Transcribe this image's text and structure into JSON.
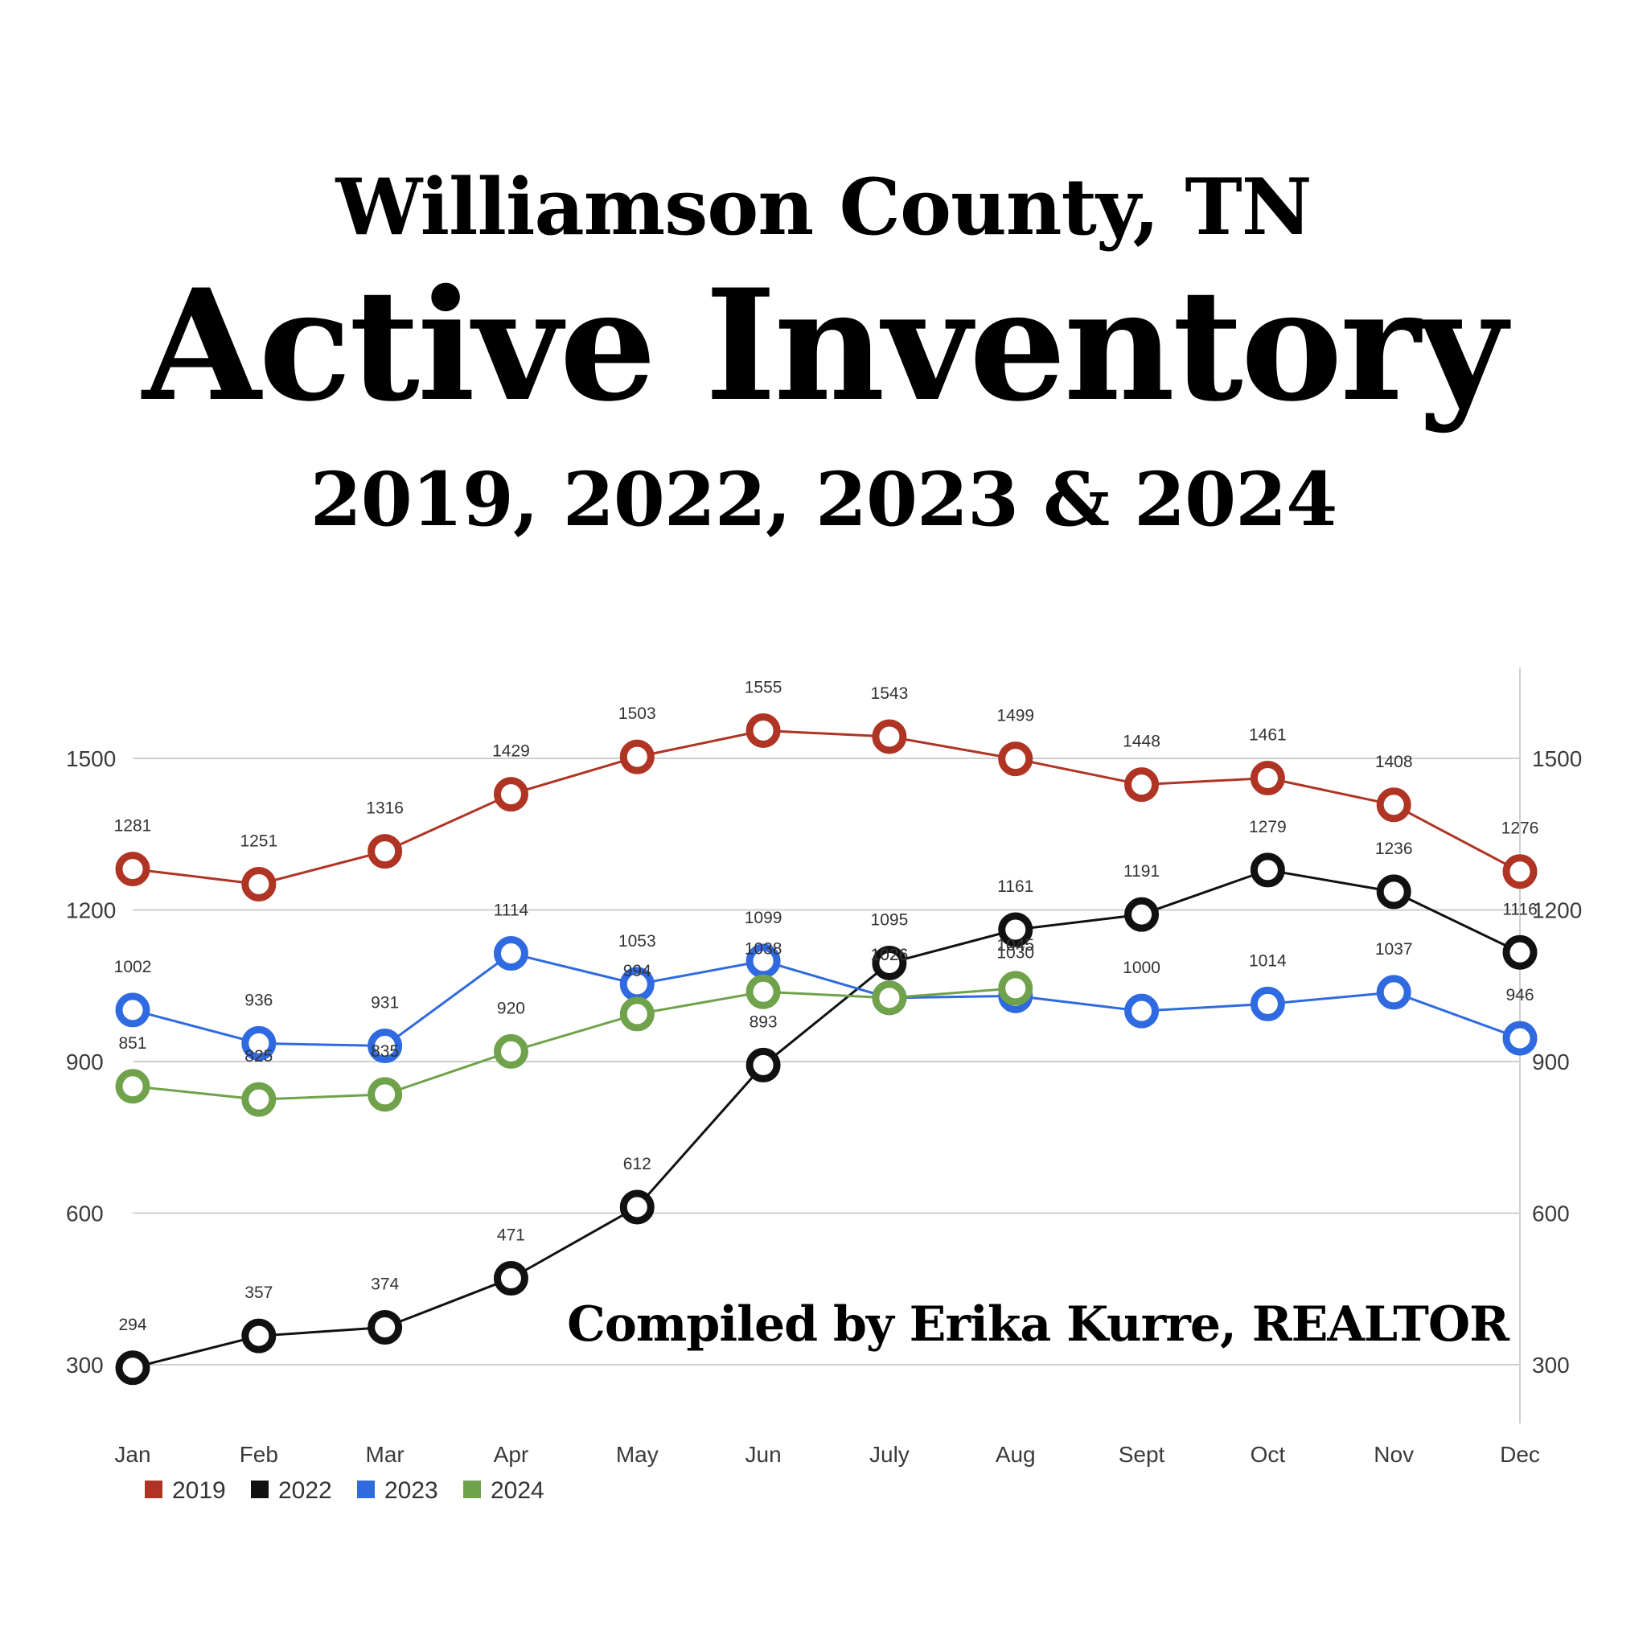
{
  "header": {
    "line1": "Williamson County, TN",
    "line2": "Active Inventory",
    "line3": "2019, 2022, 2023 & 2024"
  },
  "credit": "Compiled by Erika Kurre, REALTOR",
  "chart_data": {
    "type": "line",
    "title": "Active Inventory",
    "xlabel": "",
    "ylabel": "",
    "categories": [
      "Jan",
      "Feb",
      "Mar",
      "Apr",
      "May",
      "Jun",
      "July",
      "Aug",
      "Sept",
      "Oct",
      "Nov",
      "Dec"
    ],
    "yticks": [
      300,
      600,
      900,
      1200,
      1500
    ],
    "ylim": [
      200,
      1700
    ],
    "grid": true,
    "legend_position": "bottom-left",
    "series": [
      {
        "name": "2019",
        "color": "#b03424",
        "values": [
          1281,
          1251,
          1316,
          1429,
          1503,
          1555,
          1543,
          1499,
          1448,
          1461,
          1408,
          1276
        ]
      },
      {
        "name": "2022",
        "color": "#111111",
        "values": [
          294,
          357,
          374,
          471,
          612,
          893,
          1095,
          1161,
          1191,
          1279,
          1236,
          1116
        ]
      },
      {
        "name": "2023",
        "color": "#2f6ae0",
        "values": [
          1002,
          936,
          931,
          1114,
          1053,
          1099,
          1026,
          1030,
          1000,
          1014,
          1037,
          946
        ]
      },
      {
        "name": "2024",
        "color": "#6fa24a",
        "values": [
          851,
          825,
          835,
          920,
          994,
          1038,
          1026,
          1045,
          null,
          null,
          null,
          null
        ]
      }
    ]
  }
}
